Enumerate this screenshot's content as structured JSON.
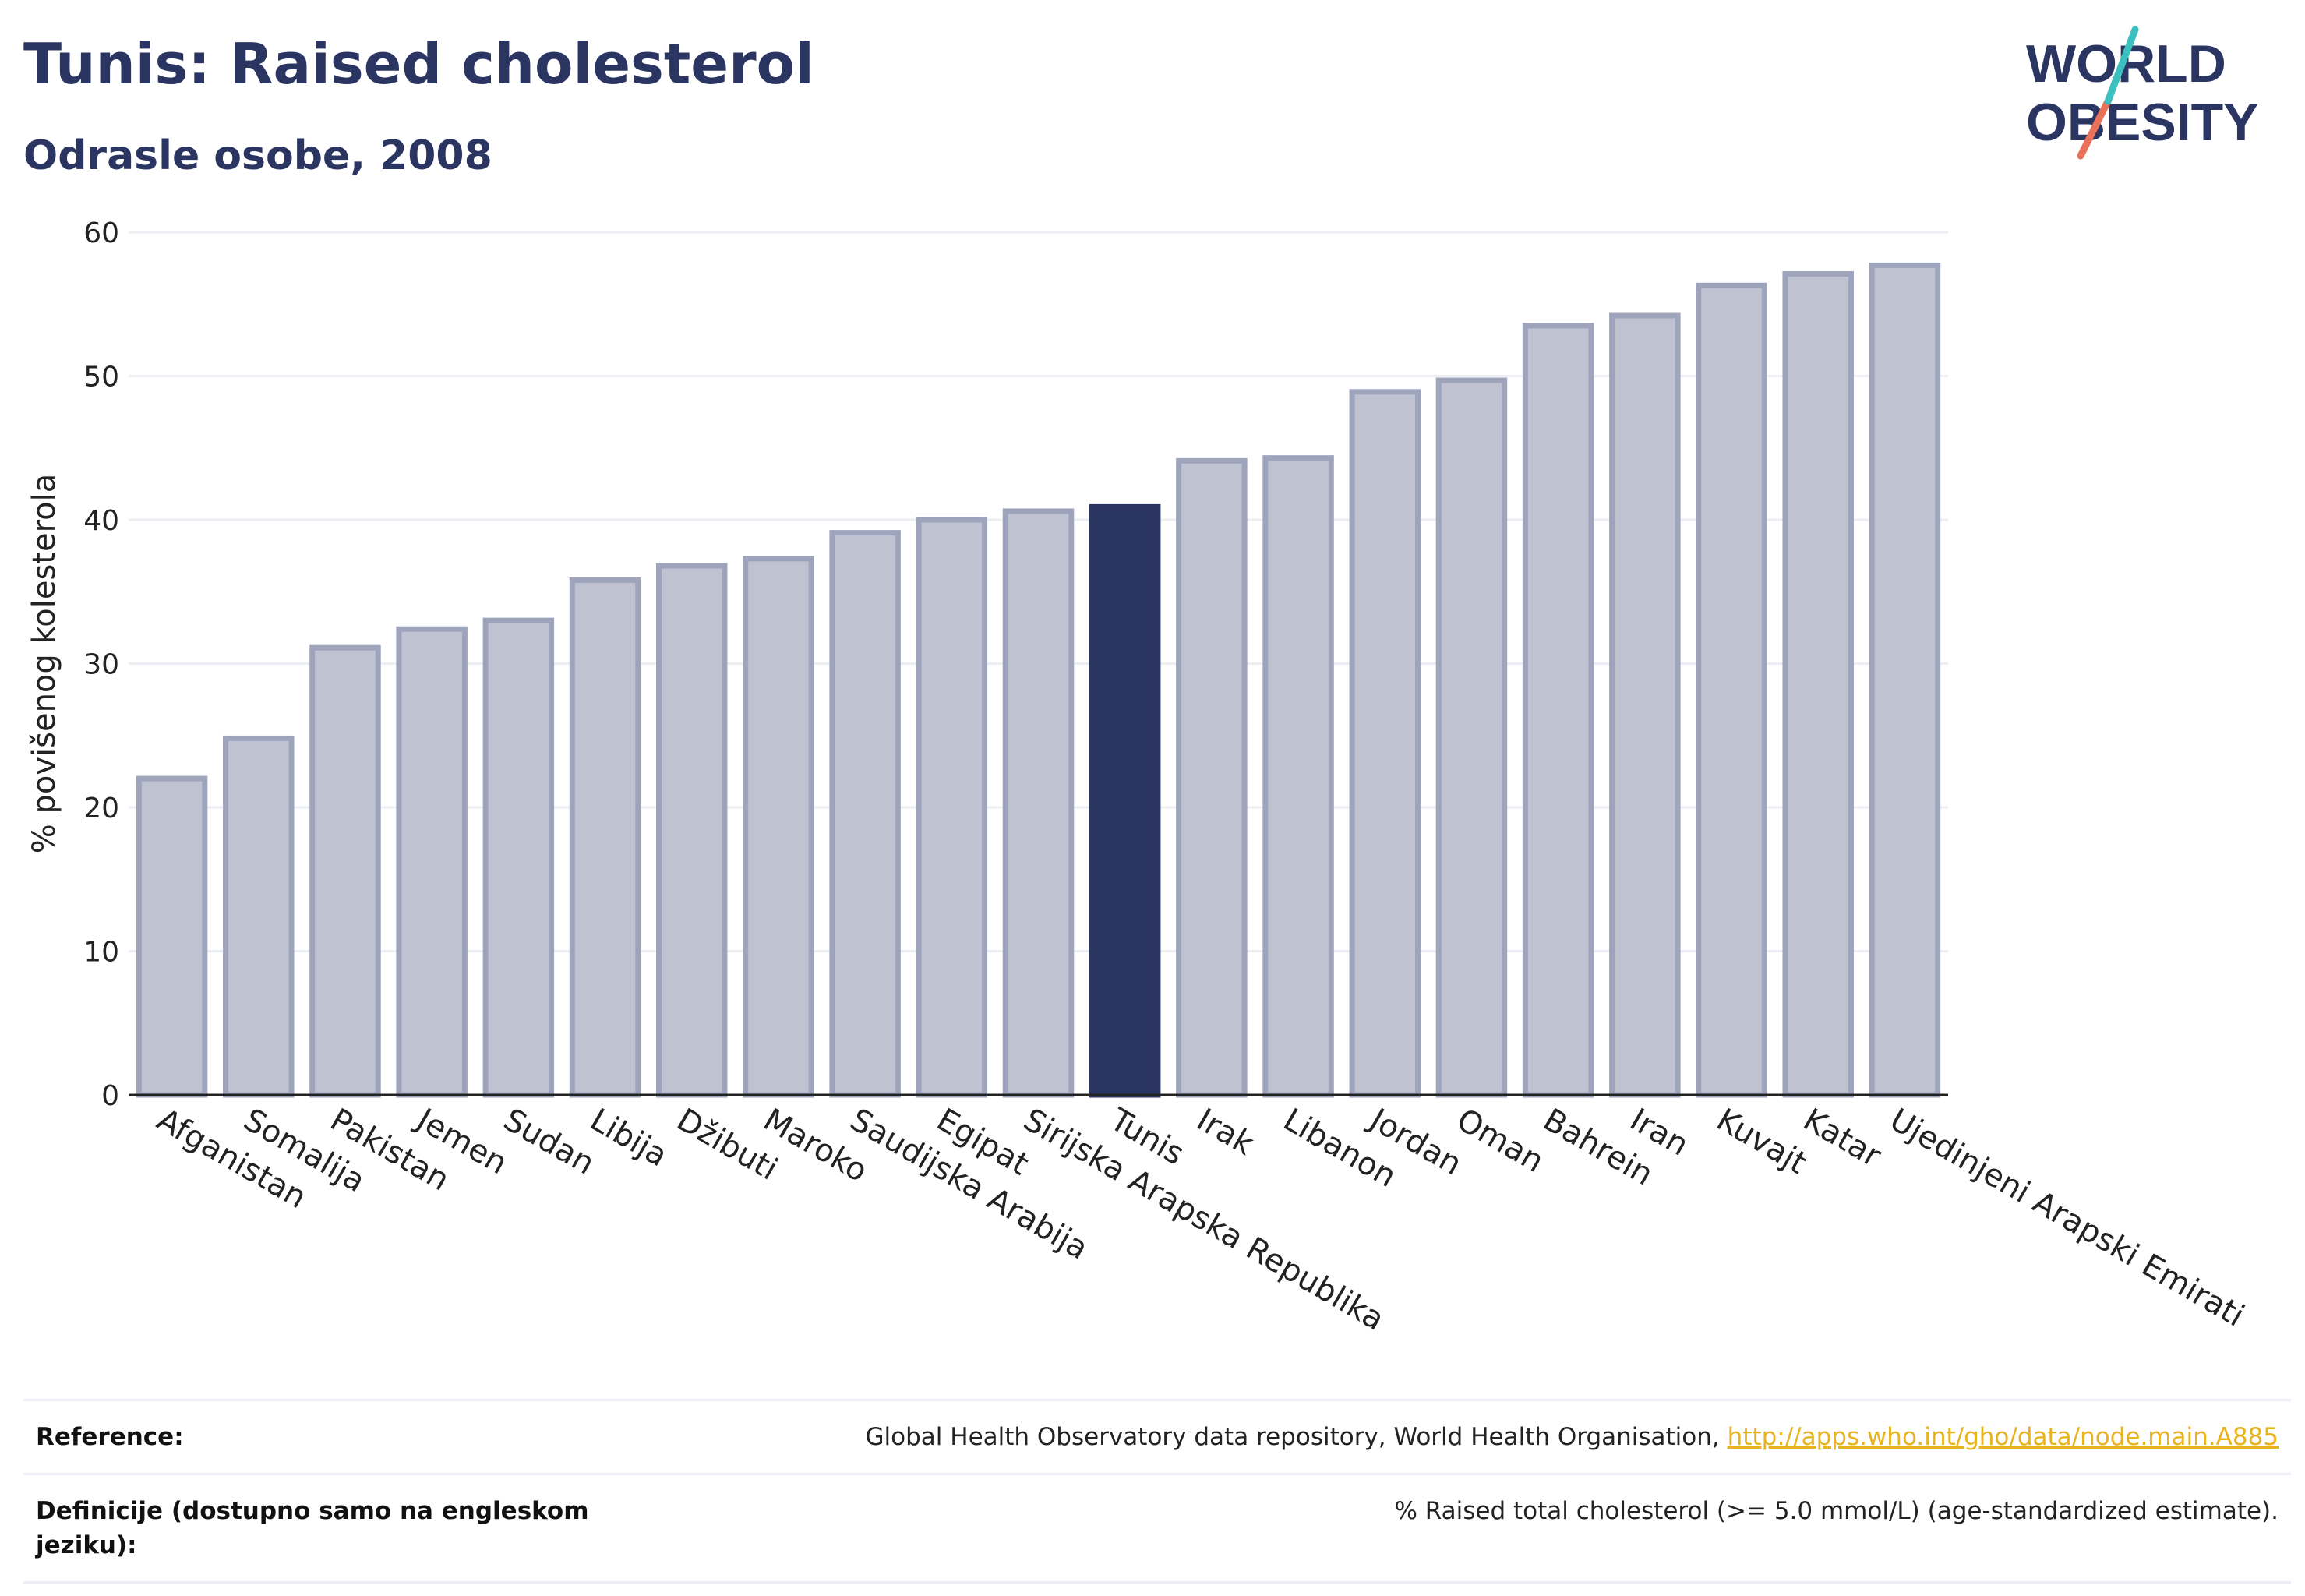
{
  "header": {
    "title": "Tunis: Raised cholesterol",
    "subtitle": "Odrasle osobe, 2008"
  },
  "logo": {
    "line1": "WORLD",
    "line2": "OBESITY"
  },
  "colors": {
    "highlight": "#2b3561",
    "bar_fill": "#bfc2d0",
    "bar_stroke": "#9fa4bd",
    "grid": "#eceef3",
    "link": "#e8b31c"
  },
  "chart_data": {
    "type": "bar",
    "title": "Tunis: Raised cholesterol",
    "subtitle": "Odrasle osobe, 2008",
    "ylabel": "% povišenog kolesterola",
    "xlabel": "",
    "ylim": [
      0,
      60
    ],
    "yticks": [
      0,
      10,
      20,
      30,
      40,
      50,
      60
    ],
    "grid": true,
    "highlight": "Tunis",
    "categories": [
      "Afganistan",
      "Somalija",
      "Pakistan",
      "Jemen",
      "Sudan",
      "Libija",
      "Džibuti",
      "Maroko",
      "Saudijska Arabija",
      "Egipat",
      "Sirijska Arapska Republika",
      "Tunis",
      "Irak",
      "Libanon",
      "Jordan",
      "Oman",
      "Bahrein",
      "Iran",
      "Kuvajt",
      "Katar",
      "Ujedinjeni Arapski Emirati"
    ],
    "values": [
      22.0,
      24.8,
      31.1,
      32.4,
      33.0,
      35.8,
      36.8,
      37.3,
      39.1,
      40.0,
      40.6,
      40.9,
      44.1,
      44.3,
      48.9,
      49.7,
      53.5,
      54.2,
      56.3,
      57.1,
      57.7
    ]
  },
  "reference": {
    "rows": [
      {
        "label": "Reference:",
        "text": "Global Health Observatory data repository, World Health Organisation, ",
        "link": "http://apps.who.int/gho/data/node.main.A885"
      },
      {
        "label": "Definicije (dostupno samo na engleskom jeziku):",
        "text": "% Raised total cholesterol (>= 5.0 mmol/L) (age-standardized estimate).",
        "link": ""
      }
    ]
  }
}
